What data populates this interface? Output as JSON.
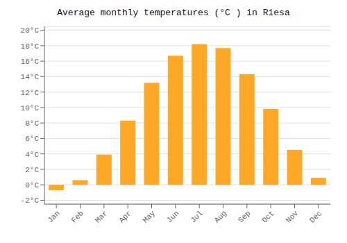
{
  "chart_data": {
    "type": "bar",
    "title": "Average monthly temperatures (°C ) in Riesa",
    "categories": [
      "Jan",
      "Feb",
      "Mar",
      "Apr",
      "May",
      "Jun",
      "Jul",
      "Aug",
      "Sep",
      "Oct",
      "Nov",
      "Dec"
    ],
    "values": [
      -0.7,
      0.6,
      3.9,
      8.3,
      13.2,
      16.7,
      18.2,
      17.7,
      14.3,
      9.8,
      4.5,
      0.9
    ],
    "color": "#FFA726",
    "ylim": [
      -2.5,
      20.5
    ],
    "yticks": [
      {
        "value": -2,
        "label": "-2°C"
      },
      {
        "value": 0,
        "label": "0°C"
      },
      {
        "value": 2,
        "label": "2°C"
      },
      {
        "value": 4,
        "label": "4°C"
      },
      {
        "value": 6,
        "label": "6°C"
      },
      {
        "value": 8,
        "label": "8°C"
      },
      {
        "value": 10,
        "label": "10°C"
      },
      {
        "value": 12,
        "label": "12°C"
      },
      {
        "value": 14,
        "label": "14°C"
      },
      {
        "value": 16,
        "label": "16°C"
      },
      {
        "value": 18,
        "label": "18°C"
      },
      {
        "value": 20,
        "label": "20°C"
      }
    ],
    "grid": true
  }
}
